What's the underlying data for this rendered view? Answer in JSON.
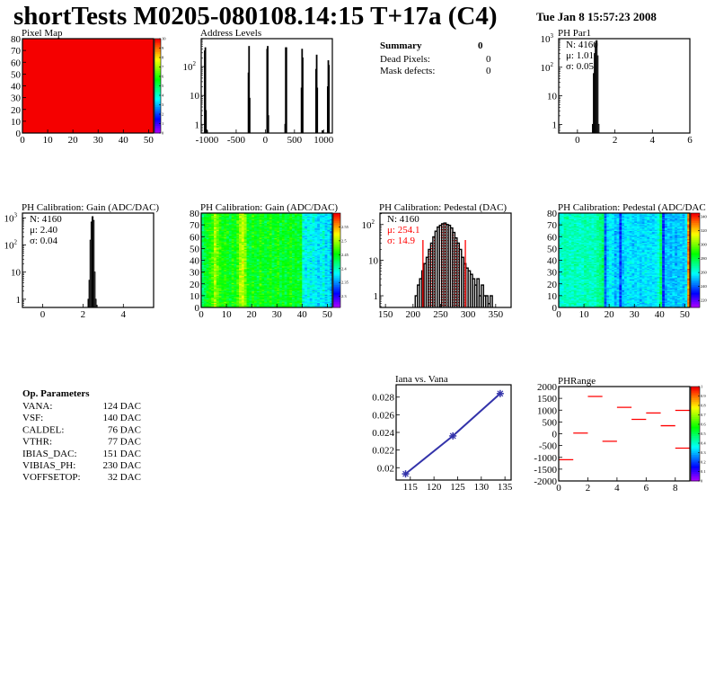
{
  "title": "shortTests M0205-080108.14:15 T+17a (C4)",
  "date": "Tue Jan  8 15:57:23 2008",
  "summary": {
    "title": "Summary",
    "value": "0",
    "rows": [
      {
        "label": "Dead Pixels:",
        "value": "0"
      },
      {
        "label": "Mask defects:",
        "value": "0"
      }
    ]
  },
  "op_parameters": {
    "title": "Op. Parameters",
    "rows": [
      {
        "label": "VANA:",
        "value": "124 DAC"
      },
      {
        "label": "VSF:",
        "value": "140 DAC"
      },
      {
        "label": "CALDEL:",
        "value": "76 DAC"
      },
      {
        "label": "VTHR:",
        "value": "77 DAC"
      },
      {
        "label": "IBIAS_DAC:",
        "value": "151 DAC"
      },
      {
        "label": "VIBIAS_PH:",
        "value": "230 DAC"
      },
      {
        "label": "VOFFSETOP:",
        "value": "32 DAC"
      }
    ]
  },
  "colors": {
    "histogram": "#000000",
    "fit": "#ff0000",
    "graph": "#3333aa",
    "palette": "rainbow"
  },
  "chart_data": [
    {
      "id": "pixel-map",
      "type": "heatmap",
      "title": "Pixel Map",
      "xlim": [
        0,
        52
      ],
      "ylim": [
        0,
        80
      ],
      "xticks": [
        0,
        10,
        20,
        30,
        40,
        50
      ],
      "yticks": [
        0,
        10,
        20,
        30,
        40,
        50,
        60,
        70,
        80
      ],
      "zlim": [
        0,
        10
      ],
      "zticks": [
        0,
        1,
        2,
        3,
        4,
        5,
        6,
        7,
        8,
        9,
        10
      ],
      "uniform_value": 10
    },
    {
      "id": "address-levels",
      "type": "histogram",
      "title": "Address Levels",
      "xlim": [
        -1100,
        1150
      ],
      "ylim": [
        0.5,
        930
      ],
      "ylog": true,
      "xticks": [
        -1000,
        -500,
        0,
        500,
        1000
      ],
      "yticks": [
        1,
        10,
        100
      ],
      "bin_width": 10,
      "bins": [
        [
          -1045,
          350
        ],
        [
          -1035,
          450
        ],
        [
          -1025,
          3
        ],
        [
          -1005,
          0.6
        ],
        [
          -295,
          60
        ],
        [
          -285,
          500
        ],
        [
          -275,
          8
        ],
        [
          25,
          400
        ],
        [
          35,
          500
        ],
        [
          45,
          2
        ],
        [
          335,
          1
        ],
        [
          345,
          450
        ],
        [
          355,
          450
        ],
        [
          615,
          18
        ],
        [
          625,
          400
        ],
        [
          635,
          200
        ],
        [
          865,
          80
        ],
        [
          875,
          250
        ],
        [
          885,
          18
        ],
        [
          975,
          0.6
        ],
        [
          1065,
          20
        ],
        [
          1075,
          160
        ],
        [
          1085,
          110
        ]
      ]
    },
    {
      "id": "ph-par1",
      "type": "histogram",
      "title": "PH Par1",
      "xlim": [
        -1,
        6
      ],
      "ylim": [
        0.5,
        1000
      ],
      "ylog": true,
      "xticks": [
        0,
        2,
        4,
        6
      ],
      "yticks": [
        1,
        10,
        100,
        1000
      ],
      "stats": {
        "n": "N: 4160",
        "mean": "μ: 1.01",
        "sigma": "σ: 0.05"
      },
      "bin_width": 0.05,
      "bins": [
        [
          0.8,
          1
        ],
        [
          0.85,
          60
        ],
        [
          0.9,
          300
        ],
        [
          0.95,
          700
        ],
        [
          1.0,
          850
        ],
        [
          1.05,
          250
        ],
        [
          1.1,
          1
        ]
      ]
    },
    {
      "id": "gain-hist",
      "type": "histogram",
      "title": "PH Calibration: Gain (ADC/DAC)",
      "xlim": [
        -1,
        5.5
      ],
      "ylim": [
        0.5,
        1500
      ],
      "ylog": true,
      "xticks": [
        0,
        2,
        4
      ],
      "yticks": [
        1,
        10,
        100,
        1000
      ],
      "stats": {
        "n": "N: 4160",
        "mean": "μ: 2.40",
        "sigma": "σ: 0.04"
      },
      "bin_width": 0.05,
      "bins": [
        [
          2.25,
          1
        ],
        [
          2.3,
          5
        ],
        [
          2.35,
          150
        ],
        [
          2.4,
          700
        ],
        [
          2.45,
          1100
        ],
        [
          2.5,
          800
        ],
        [
          2.55,
          10
        ],
        [
          2.6,
          1
        ],
        [
          2.65,
          0.6
        ]
      ]
    },
    {
      "id": "gain-map",
      "type": "heatmap",
      "title": "PH Calibration: Gain (ADC/DAC)",
      "xlim": [
        0,
        52
      ],
      "ylim": [
        0,
        80
      ],
      "xticks": [
        0,
        10,
        20,
        30,
        40,
        50
      ],
      "yticks": [
        0,
        10,
        20,
        30,
        40,
        50,
        60,
        70,
        80
      ],
      "zlim": [
        2.26,
        2.6
      ],
      "zticks": [
        2.3,
        2.35,
        2.4,
        2.45,
        2.5,
        2.55
      ],
      "column_means": [
        2.42,
        2.44,
        2.45,
        2.46,
        2.47,
        2.5,
        2.48,
        2.46,
        2.45,
        2.46,
        2.45,
        2.44,
        2.46,
        2.45,
        2.47,
        2.5,
        2.51,
        2.49,
        2.45,
        2.44,
        2.46,
        2.45,
        2.44,
        2.46,
        2.45,
        2.44,
        2.45,
        2.46,
        2.44,
        2.45,
        2.46,
        2.44,
        2.45,
        2.44,
        2.45,
        2.46,
        2.44,
        2.45,
        2.44,
        2.45,
        2.39,
        2.38,
        2.39,
        2.38,
        2.39,
        2.38,
        2.37,
        2.38,
        2.39,
        2.37,
        2.38,
        2.36
      ],
      "noise": 0.025
    },
    {
      "id": "pedestal-hist",
      "type": "histogram",
      "title": "PH Calibration: Pedestal (DAC)",
      "xlim": [
        140,
        378
      ],
      "ylim": [
        0.47,
        210
      ],
      "ylog": true,
      "xticks": [
        150,
        200,
        250,
        300,
        350
      ],
      "yticks": [
        1,
        10,
        100
      ],
      "stats": {
        "n": "N: 4160",
        "mean": "μ: 254.1",
        "sigma": "σ: 14.9"
      },
      "fit_range": [
        218,
        295
      ],
      "bin_width": 4,
      "bins": [
        [
          204,
          1
        ],
        [
          208,
          2
        ],
        [
          212,
          3
        ],
        [
          216,
          5
        ],
        [
          220,
          8
        ],
        [
          224,
          12
        ],
        [
          228,
          20
        ],
        [
          232,
          30
        ],
        [
          236,
          45
        ],
        [
          240,
          65
        ],
        [
          244,
          85
        ],
        [
          248,
          95
        ],
        [
          252,
          105
        ],
        [
          256,
          110
        ],
        [
          260,
          100
        ],
        [
          264,
          95
        ],
        [
          268,
          80
        ],
        [
          272,
          60
        ],
        [
          276,
          42
        ],
        [
          280,
          30
        ],
        [
          284,
          20
        ],
        [
          288,
          12
        ],
        [
          292,
          8
        ],
        [
          296,
          6
        ],
        [
          300,
          5
        ],
        [
          304,
          4
        ],
        [
          308,
          3
        ],
        [
          312,
          2
        ],
        [
          316,
          3
        ],
        [
          320,
          1
        ],
        [
          324,
          2
        ],
        [
          328,
          1
        ],
        [
          332,
          1
        ],
        [
          336,
          0.6
        ],
        [
          340,
          1
        ]
      ]
    },
    {
      "id": "pedestal-map",
      "type": "heatmap",
      "title": "PH Calibration: Pedestal (ADC/DAC",
      "xlim": [
        0,
        52
      ],
      "ylim": [
        0,
        80
      ],
      "xticks": [
        0,
        10,
        20,
        30,
        40,
        50
      ],
      "yticks": [
        0,
        10,
        20,
        30,
        40,
        50,
        60,
        70,
        80
      ],
      "zlim": [
        210,
        345
      ],
      "zticks": [
        220,
        240,
        260,
        280,
        300,
        320,
        340
      ],
      "column_means": [
        262,
        265,
        268,
        266,
        264,
        265,
        267,
        266,
        264,
        265,
        268,
        267,
        266,
        265,
        266,
        270,
        272,
        275,
        240,
        255,
        258,
        256,
        250,
        254,
        236,
        252,
        255,
        257,
        256,
        254,
        255,
        256,
        253,
        255,
        257,
        256,
        254,
        255,
        256,
        262,
        275,
        235,
        250,
        252,
        251,
        253,
        250,
        252,
        254,
        251,
        256,
        330
      ],
      "noise": 8
    },
    {
      "id": "iana-vs-vana",
      "type": "line",
      "title": "Iana vs. Vana",
      "xlim": [
        112,
        136.3
      ],
      "ylim": [
        0.0186,
        0.0294
      ],
      "xticks": [
        115,
        120,
        125,
        130,
        135
      ],
      "yticks": [
        0.02,
        0.022,
        0.024,
        0.026,
        0.028
      ],
      "x": [
        114,
        124,
        134
      ],
      "y": [
        0.0193,
        0.0236,
        0.0284
      ]
    },
    {
      "id": "ph-range",
      "type": "heatmap",
      "title": "PHRange",
      "xlim": [
        0,
        9
      ],
      "ylim": [
        -2000,
        2000
      ],
      "xticks": [
        0,
        2,
        4,
        6,
        8
      ],
      "yticks": [
        -2000,
        -1500,
        -1000,
        -500,
        0,
        500,
        1000,
        1500,
        2000
      ],
      "zlim": [
        0,
        1
      ],
      "zticks": [
        0,
        0.1,
        0.2,
        0.3,
        0.4,
        0.5,
        0.6,
        0.7,
        0.8,
        0.9,
        1
      ],
      "segments": [
        [
          0,
          -1100
        ],
        [
          1,
          30
        ],
        [
          2,
          1580
        ],
        [
          3,
          -320
        ],
        [
          4,
          1120
        ],
        [
          5,
          610
        ],
        [
          6,
          880
        ],
        [
          7,
          340
        ],
        [
          8,
          990
        ],
        [
          8,
          -610
        ]
      ]
    }
  ]
}
